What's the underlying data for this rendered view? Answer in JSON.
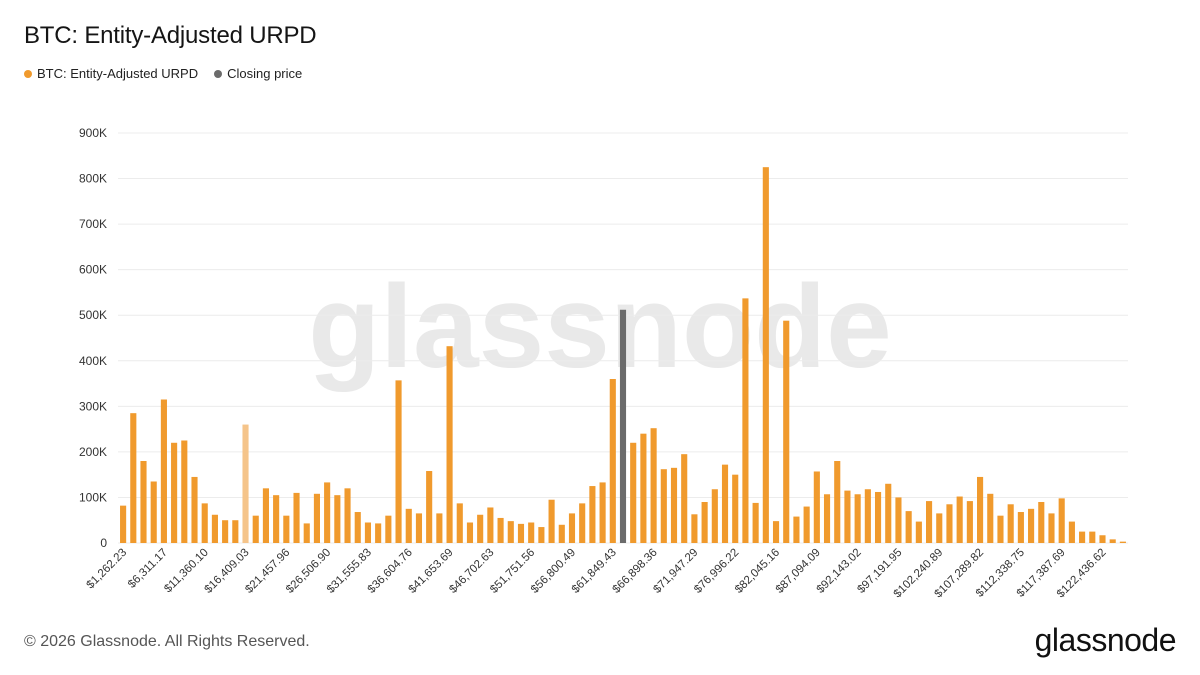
{
  "title": "BTC: Entity-Adjusted URPD",
  "legend": [
    {
      "label": "BTC: Entity-Adjusted URPD",
      "color": "#f09a2d"
    },
    {
      "label": "Closing price",
      "color": "#6b6b6b"
    }
  ],
  "watermark": "glassnode",
  "footer": "© 2026 Glassnode. All Rights Reserved.",
  "logo": "glassnode",
  "colors": {
    "bar": "#f09a2d",
    "highlight": "#6b6b6b",
    "faded": "#f5c48a",
    "grid": "#ececec"
  },
  "chart_data": {
    "type": "bar",
    "title": "BTC: Entity-Adjusted URPD",
    "ylim": [
      0,
      900000
    ],
    "yticks": [
      {
        "value": 0,
        "label": "0"
      },
      {
        "value": 100000,
        "label": "100K"
      },
      {
        "value": 200000,
        "label": "200K"
      },
      {
        "value": 300000,
        "label": "300K"
      },
      {
        "value": 400000,
        "label": "400K"
      },
      {
        "value": 500000,
        "label": "500K"
      },
      {
        "value": 600000,
        "label": "600K"
      },
      {
        "value": 700000,
        "label": "700K"
      },
      {
        "value": 800000,
        "label": "800K"
      },
      {
        "value": 900000,
        "label": "900K"
      }
    ],
    "grid": true,
    "legend_position": "top-left",
    "xtick_labels": [
      "$1,262.23",
      "$6,311.17",
      "$11,360.10",
      "$16,409.03",
      "$21,457.96",
      "$26,506.90",
      "$31,555.83",
      "$36,604.76",
      "$41,653.69",
      "$46,702.63",
      "$51,751.56",
      "$56,800.49",
      "$61,849.43",
      "$66,898.36",
      "$71,947.29",
      "$76,996.22",
      "$82,045.16",
      "$87,094.09",
      "$92,143.02",
      "$97,191.95",
      "$102,240.89",
      "$107,289.82",
      "$112,338.75",
      "$117,387.69",
      "$122,436.62"
    ],
    "xtick_every": 4,
    "closing_price_index": 49,
    "faded_index": 12,
    "series": [
      {
        "name": "BTC: Entity-Adjusted URPD",
        "values": [
          82000,
          285000,
          180000,
          135000,
          315000,
          220000,
          225000,
          145000,
          87000,
          62000,
          50000,
          50000,
          260000,
          60000,
          120000,
          105000,
          60000,
          110000,
          43000,
          108000,
          133000,
          105000,
          120000,
          68000,
          45000,
          43000,
          60000,
          357000,
          75000,
          65000,
          158000,
          65000,
          432000,
          87000,
          45000,
          62000,
          78000,
          55000,
          48000,
          42000,
          45000,
          35000,
          95000,
          40000,
          65000,
          87000,
          125000,
          133000,
          360000,
          512000,
          220000,
          240000,
          252000,
          162000,
          165000,
          195000,
          63000,
          90000,
          118000,
          172000,
          150000,
          537000,
          88000,
          825000,
          48000,
          488000,
          58000,
          80000,
          157000,
          107000,
          180000,
          115000,
          107000,
          118000,
          112000,
          130000,
          100000,
          70000,
          47000,
          92000,
          65000,
          85000,
          102000,
          92000,
          145000,
          108000,
          60000,
          85000,
          68000,
          75000,
          90000,
          65000,
          98000,
          47000,
          25000,
          25000,
          17000,
          8000,
          3000
        ]
      }
    ]
  }
}
